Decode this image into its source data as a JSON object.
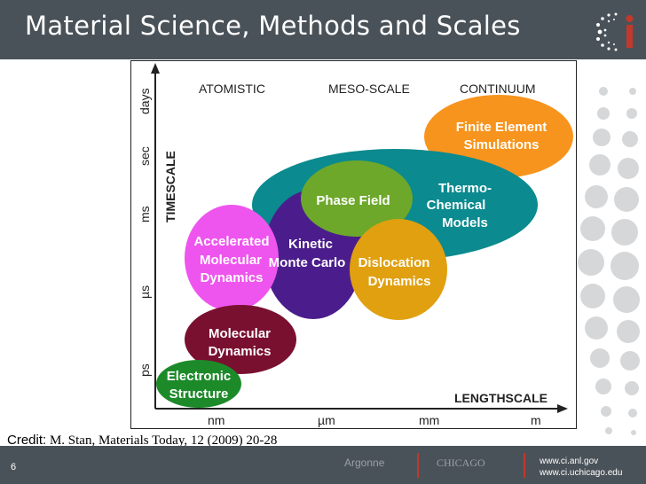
{
  "slide": {
    "title": "Material Science, Methods and Scales",
    "page_number": "6",
    "credit_label": "Credit:",
    "credit_text": "M. Stan, Materials Today, 12 (2009) 20-28"
  },
  "logo": {
    "letter": "ci"
  },
  "footer": {
    "sponsor_left": "Argonne",
    "sponsor_right": "CHICAGO",
    "url_1": "www.ci.anl.gov",
    "url_2": "www.ci.uchicago.edu"
  },
  "figure": {
    "headers": [
      "ATOMISTIC",
      "MESO-SCALE",
      "CONTINUUM"
    ],
    "y_axis_title": "TIMESCALE",
    "x_axis_title": "LENGTHSCALE",
    "y_ticks": [
      "days",
      "sec",
      "ms",
      "µs",
      "ps"
    ],
    "x_ticks": [
      "nm",
      "µm",
      "mm",
      "m"
    ],
    "methods": {
      "finite_element": [
        "Finite Element",
        "Simulations"
      ],
      "thermo_chemical": [
        "Thermo-",
        "Chemical",
        "Models"
      ],
      "phase_field": [
        "Phase Field"
      ],
      "kinetic_mc": [
        "Kinetic",
        "Monte Carlo"
      ],
      "accelerated_md": [
        "Accelerated",
        "Molecular",
        "Dynamics"
      ],
      "dislocation": [
        "Dislocation",
        "Dynamics"
      ],
      "molecular_dynamics": [
        "Molecular",
        "Dynamics"
      ],
      "electronic": [
        "Electronic",
        "Structure"
      ]
    },
    "colors": {
      "finite_element": "#f7941d",
      "thermo_chemical": "#0b8a8f",
      "phase_field": "#6da82b",
      "kinetic_mc": "#4b1d8c",
      "accelerated_md": "#ee55ee",
      "dislocation": "#e0a010",
      "molecular_dynamics": "#7a1030",
      "electronic": "#1d8a2a"
    }
  }
}
